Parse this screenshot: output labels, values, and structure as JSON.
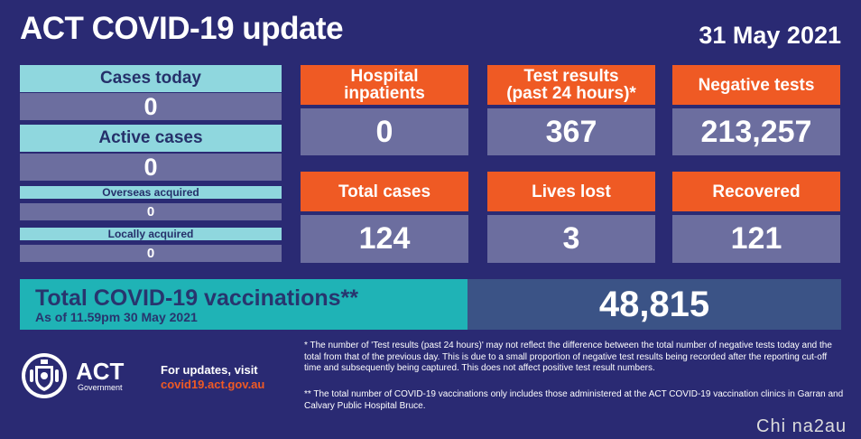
{
  "header": {
    "title": "ACT COVID-19 update",
    "date": "31 May 2021"
  },
  "left_stats": {
    "cases_today": {
      "label": "Cases today",
      "value": "0"
    },
    "active_cases": {
      "label": "Active cases",
      "value": "0"
    },
    "overseas_acquired": {
      "label": "Overseas acquired",
      "value": "0"
    },
    "locally_acquired": {
      "label": "Locally acquired",
      "value": "0"
    }
  },
  "tiles": {
    "hospital_inpatients": {
      "label": "Hospital inpatients",
      "value": "0"
    },
    "test_results": {
      "label_line1": "Test results",
      "label_line2": "(past 24 hours)*",
      "value": "367"
    },
    "negative_tests": {
      "label": "Negative tests",
      "value": "213,257"
    },
    "total_cases": {
      "label": "Total cases",
      "value": "124"
    },
    "lives_lost": {
      "label": "Lives lost",
      "value": "3"
    },
    "recovered": {
      "label": "Recovered",
      "value": "121"
    }
  },
  "vaccinations": {
    "label": "Total COVID-19 vaccinations**",
    "as_of": "As of 11.59pm 30 May 2021",
    "value": "48,815"
  },
  "branding": {
    "logo_text": "ACT",
    "logo_sub": "Government",
    "crest_icon": "act-crest-icon"
  },
  "updates": {
    "line1": "For updates, visit",
    "url": "covid19.act.gov.au"
  },
  "footnotes": {
    "note1": "* The number of 'Test results (past 24 hours)' may not reflect the difference between the total number of negative tests today and the total from that of the previous day. This is due to a small proportion of negative test results being recorded after the reporting cut-off time and subsequently being captured. This does not affect positive test result numbers.",
    "note2": "** The total number of COVID-19 vaccinations only includes those administered at the ACT COVID-19 vaccination clinics in Garran and Calvary Public Hospital Bruce."
  },
  "watermark": "Chi na2au",
  "colors": {
    "background": "#2a2a73",
    "orange": "#ef5a24",
    "teal": "#1fb3b6",
    "light_teal": "#8fd7de",
    "value_box": "#6c6e9f",
    "vax_value_box": "#3b5386"
  }
}
